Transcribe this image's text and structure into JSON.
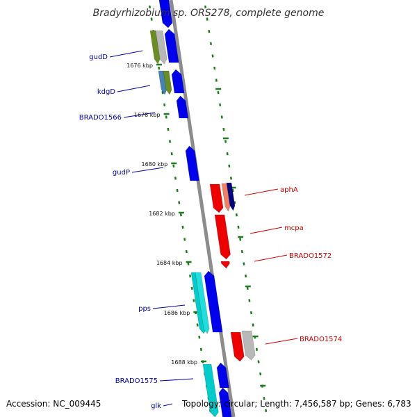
{
  "title": "Bradyrhizobium sp. ORS278, complete genome",
  "footer": {
    "accession": "Accession: NC_009445",
    "topology": "Topology: circular; Length: 7,456,587 bp; Genes: 6,783"
  },
  "colors": {
    "backbone": "#8c8c8c",
    "ticks": "#1e7a1e",
    "label_forward": "#0000aa",
    "label_reverse": "#cc0000",
    "blue": "#0000ee",
    "cyan": "#00cccc",
    "green": "#6b8e23",
    "gray": "#b8b8b8",
    "red": "#ee0000",
    "salmon": "#f08060",
    "navy": "#000080",
    "steel": "#4682b4"
  },
  "scale_labels": [
    "1676 kbp",
    "1678 kbp",
    "1680 kbp",
    "1682 kbp",
    "1684 kbp",
    "1686 kbp",
    "1688 kbp"
  ],
  "genes": {
    "forward": [
      "gudD",
      "kdgD",
      "BRADO1566",
      "gudP",
      "pps",
      "BRADO1575",
      "glk"
    ],
    "reverse": [
      "aphA",
      "mcpa",
      "BRADO1572",
      "BRADO1574"
    ]
  }
}
